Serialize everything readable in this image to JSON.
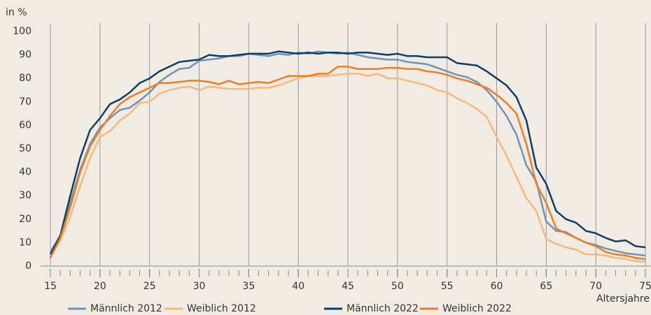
{
  "chart_data": {
    "type": "line",
    "y_label": "in %",
    "x_label": "Altersjahre",
    "x": [
      15,
      16,
      17,
      18,
      19,
      20,
      21,
      22,
      23,
      24,
      25,
      26,
      27,
      28,
      29,
      30,
      31,
      32,
      33,
      34,
      35,
      36,
      37,
      38,
      39,
      40,
      41,
      42,
      43,
      44,
      45,
      46,
      47,
      48,
      49,
      50,
      51,
      52,
      53,
      54,
      55,
      56,
      57,
      58,
      59,
      60,
      61,
      62,
      63,
      64,
      65,
      66,
      67,
      68,
      69,
      70,
      71,
      72,
      73,
      74,
      75
    ],
    "xlim": [
      15,
      75
    ],
    "xticks": [
      15,
      20,
      25,
      30,
      35,
      40,
      45,
      50,
      55,
      60,
      65,
      70,
      75
    ],
    "ylim": [
      0,
      100
    ],
    "yticks": [
      0,
      10,
      20,
      30,
      40,
      50,
      60,
      70,
      80,
      90,
      100
    ],
    "grid": "x",
    "series": [
      {
        "name": "Männlich 2012",
        "color": "#6f93b8",
        "values": [
          6,
          13,
          27,
          41,
          52,
          59,
          63,
          66.5,
          67.5,
          70.5,
          74,
          78.5,
          81.5,
          84,
          84.5,
          87.5,
          88,
          88.5,
          89.5,
          89.5,
          90.5,
          90,
          89.5,
          90.5,
          90,
          91,
          90.5,
          91.5,
          91,
          90.5,
          91,
          90,
          89,
          88.5,
          88,
          88,
          87,
          86.5,
          86,
          84.5,
          83,
          81.5,
          80.5,
          78.5,
          75,
          70,
          64,
          56,
          43,
          36,
          19,
          15,
          14.5,
          12,
          10,
          9,
          7.5,
          6.5,
          5.5,
          5,
          4.5
        ]
      },
      {
        "name": "Weiblich 2012",
        "color": "#f7b97a",
        "values": [
          4,
          11,
          21,
          34,
          46,
          55,
          57.5,
          62,
          65,
          69.5,
          70,
          73.5,
          75,
          76,
          76.5,
          75,
          76.5,
          76,
          75.5,
          75.5,
          75.5,
          76,
          76,
          77,
          78.5,
          80,
          81,
          81,
          81,
          81.5,
          82,
          82,
          81,
          82,
          80,
          80,
          79,
          78,
          77,
          75,
          74,
          71.5,
          69.5,
          67,
          63.5,
          55,
          47,
          38,
          29,
          23.5,
          11.5,
          9.5,
          8,
          7,
          5,
          5,
          4.5,
          3.5,
          3,
          2,
          2
        ]
      },
      {
        "name": "Männlich 2022",
        "color": "#0d3f66",
        "values": [
          5,
          13,
          30,
          46,
          58,
          63,
          69,
          71,
          74,
          78,
          80,
          83,
          85,
          87,
          87.5,
          88,
          90,
          89.5,
          89.5,
          90,
          90.5,
          90.5,
          90.5,
          91.5,
          91,
          90.5,
          91,
          90.5,
          91,
          91,
          90.5,
          91,
          91,
          90.5,
          90,
          90.5,
          89.5,
          89.5,
          89,
          89,
          89,
          86.5,
          86,
          85.5,
          83,
          80,
          77,
          72,
          62,
          42,
          35,
          23.5,
          20,
          18.5,
          15,
          14,
          12,
          10.5,
          11,
          8.5,
          8
        ]
      },
      {
        "name": "Weiblich 2022",
        "color": "#ee7d22",
        "values": [
          3.5,
          12,
          25,
          40,
          51,
          58,
          64,
          69,
          72,
          74,
          76,
          78,
          78,
          78.5,
          79,
          79,
          78.5,
          77.5,
          79,
          77.5,
          78,
          78.5,
          78,
          79.5,
          81,
          81,
          81,
          82,
          82,
          85,
          85,
          84,
          84,
          84,
          84.5,
          84.5,
          84,
          84,
          83,
          82.5,
          81.5,
          80,
          79,
          77.5,
          76,
          73,
          69.5,
          65,
          52,
          35,
          27,
          16,
          14,
          12,
          10,
          8.5,
          6,
          5,
          4.5,
          3.5,
          3
        ]
      }
    ]
  }
}
